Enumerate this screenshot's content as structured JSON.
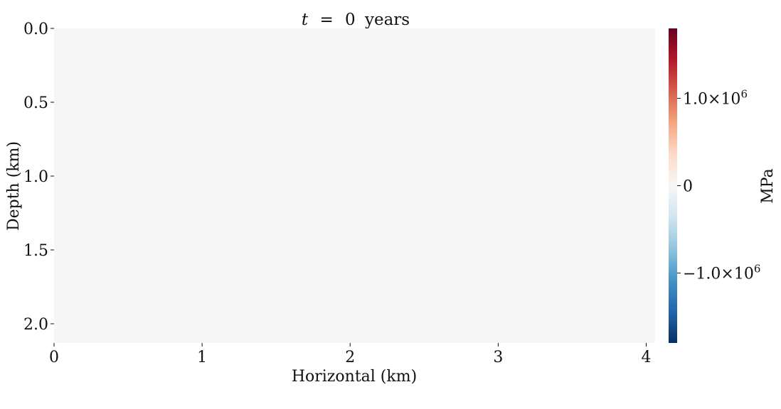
{
  "chart_data": {
    "type": "heatmap",
    "title": {
      "variable": "t",
      "operator": "=",
      "value": "0",
      "unit": "years"
    },
    "xlabel": "Horizontal (km)",
    "ylabel": "Depth (km)",
    "xlim": [
      0,
      4.06
    ],
    "ylim": [
      0,
      2.13
    ],
    "y_inverted": true,
    "x_ticks": [
      0,
      1,
      2,
      3,
      4
    ],
    "x_tick_labels": [
      "0",
      "1",
      "2",
      "3",
      "4"
    ],
    "y_ticks": [
      0.0,
      0.5,
      1.0,
      1.5,
      2.0
    ],
    "y_tick_labels": [
      "0.0",
      "0.5",
      "1.0",
      "1.5",
      "2.0"
    ],
    "field_value": 0,
    "field_color": "#f6f6f6",
    "colorbar": {
      "label": "MPa",
      "colormap": "RdBu_r",
      "range": [
        -1800000,
        1800000
      ],
      "ticks": [
        {
          "value": 1000000,
          "mantissa": "1.0",
          "times": "×",
          "base": "10",
          "exponent": "6"
        },
        {
          "value": 0,
          "mantissa": "0",
          "times": "",
          "base": "",
          "exponent": ""
        },
        {
          "value": -1000000,
          "mantissa": "−1.0",
          "times": "×",
          "base": "10",
          "exponent": "6"
        }
      ],
      "gradient": [
        "#053061",
        "#2166ac",
        "#4393c3",
        "#92c5de",
        "#d1e5f0",
        "#f7f7f7",
        "#fddbc7",
        "#f4a582",
        "#d6604d",
        "#b2182b",
        "#67001f"
      ]
    }
  }
}
